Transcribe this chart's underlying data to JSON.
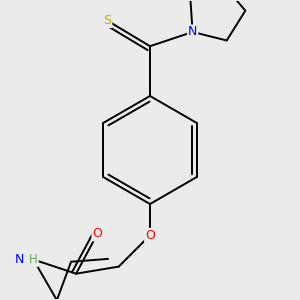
{
  "bg_color": "#ebebeb",
  "bond_color": "#000000",
  "bond_width": 1.4,
  "atom_colors": {
    "S": "#ccaa00",
    "N": "#0000ff",
    "O": "#ff0000",
    "H_label": "#5aaa5a"
  },
  "font_size": 8.5
}
